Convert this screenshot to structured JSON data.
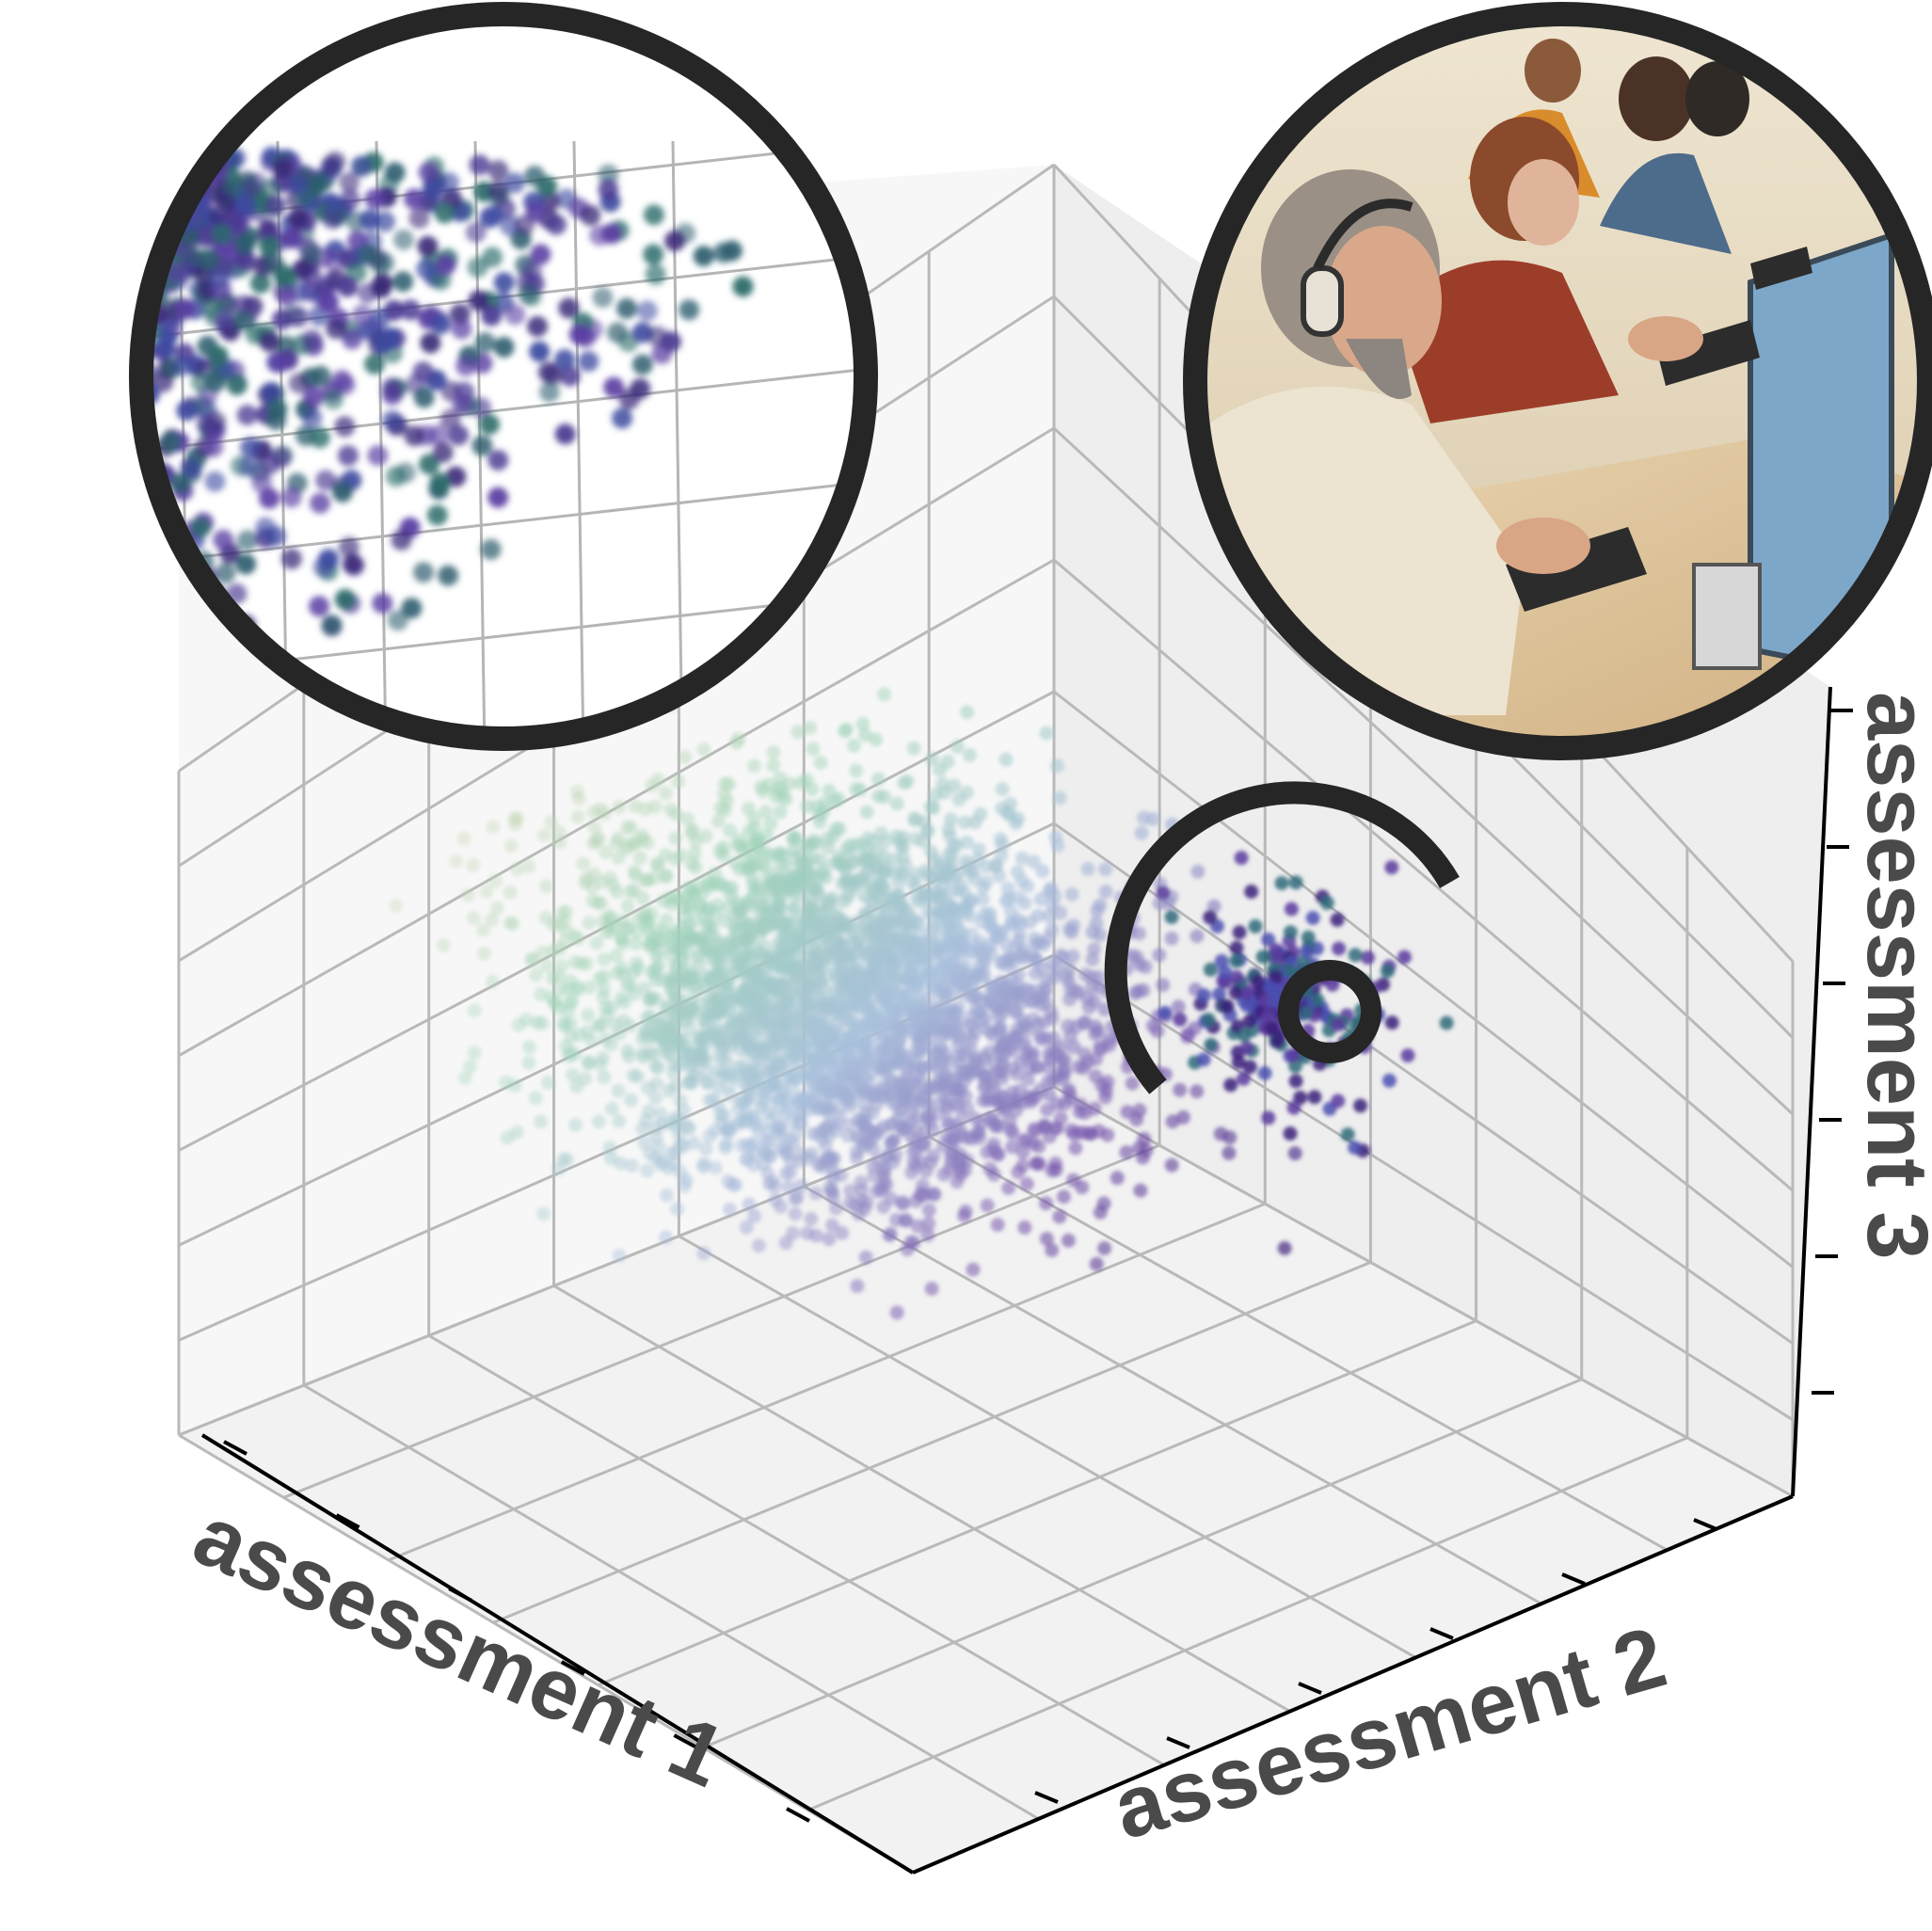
{
  "chart_data": {
    "type": "scatter",
    "dimensions": 3,
    "xlabel": "assessment 1",
    "ylabel": "assessment 2",
    "zlabel": "assessment 3",
    "axis_tick_labels_shown": false,
    "xticks_count": 6,
    "yticks_count": 6,
    "zticks_count": 6,
    "grid": true,
    "point_count_approx": 3000,
    "colormap": [
      "#f3d6c6",
      "#cdd8b4",
      "#9fd3b8",
      "#a9c0dc",
      "#7b5bb0",
      "#3b1e7a",
      "#2f7f77"
    ],
    "highlighted_cluster": {
      "colors": [
        "#3b1e7a",
        "#5a3b9e",
        "#2e6a7a",
        "#4a4fb0"
      ],
      "marker": "concentric-rings"
    }
  },
  "insets": {
    "zoom_inset": {
      "kind": "magnified-scatter",
      "border_color": "#262626"
    },
    "photo_inset": {
      "kind": "illustration",
      "subject": "people typing at computer workstations",
      "border_color": "#262626"
    }
  }
}
